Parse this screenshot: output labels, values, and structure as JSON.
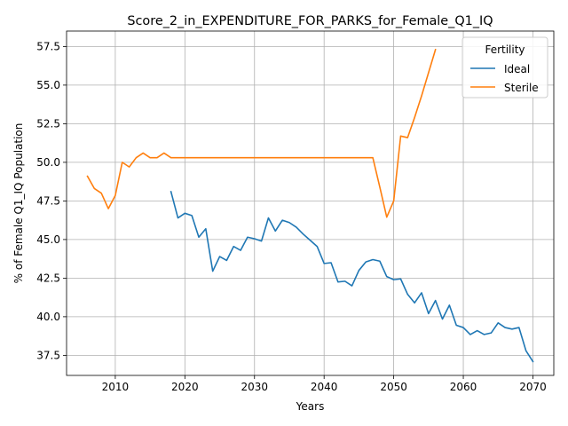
{
  "chart_data": {
    "type": "line",
    "title": "Score_2_in_EXPENDITURE_FOR_PARKS_for_Female_Q1_IQ",
    "xlabel": "Years",
    "ylabel": "% of Female Q1_IQ Population",
    "xlim": [
      2003,
      2073
    ],
    "ylim": [
      36.2,
      58.5
    ],
    "xticks": [
      2010,
      2020,
      2030,
      2040,
      2050,
      2060,
      2070
    ],
    "yticks": [
      37.5,
      40.0,
      42.5,
      45.0,
      47.5,
      50.0,
      52.5,
      55.0,
      57.5
    ],
    "grid": true,
    "legend": {
      "title": "Fertility",
      "placement": "top-right"
    },
    "series": [
      {
        "name": "Ideal",
        "color": "#1f77b4",
        "x": [
          2018,
          2019,
          2020,
          2021,
          2022,
          2023,
          2024,
          2025,
          2026,
          2027,
          2028,
          2029,
          2030,
          2031,
          2032,
          2033,
          2034,
          2035,
          2036,
          2037,
          2038,
          2039,
          2040,
          2041,
          2042,
          2043,
          2044,
          2045,
          2046,
          2047,
          2048,
          2049,
          2050,
          2051,
          2052,
          2053,
          2054,
          2055,
          2056,
          2057,
          2058,
          2059,
          2060,
          2061,
          2062,
          2063,
          2064,
          2065,
          2066,
          2067,
          2068,
          2069,
          2070
        ],
        "values": [
          48.1,
          46.4,
          46.7,
          46.55,
          45.15,
          45.7,
          42.95,
          43.9,
          43.65,
          44.55,
          44.3,
          45.15,
          45.05,
          44.9,
          46.4,
          45.55,
          46.25,
          46.1,
          45.8,
          45.35,
          44.95,
          44.55,
          43.45,
          43.5,
          42.25,
          42.3,
          42.0,
          43.0,
          43.55,
          43.7,
          43.6,
          42.6,
          42.4,
          42.45,
          41.45,
          40.9,
          41.55,
          40.2,
          41.05,
          39.85,
          40.75,
          39.45,
          39.3,
          38.85,
          39.1,
          38.85,
          38.95,
          39.6,
          39.3,
          39.2,
          39.3,
          37.8,
          37.1
        ]
      },
      {
        "name": "Sterile",
        "color": "#ff7f0e",
        "x": [
          2006,
          2007,
          2008,
          2009,
          2010,
          2011,
          2012,
          2013,
          2014,
          2015,
          2016,
          2017,
          2018,
          2019,
          2020,
          2021,
          2022,
          2023,
          2024,
          2025,
          2026,
          2027,
          2028,
          2029,
          2030,
          2031,
          2032,
          2033,
          2034,
          2035,
          2036,
          2037,
          2038,
          2039,
          2040,
          2041,
          2042,
          2043,
          2044,
          2045,
          2046,
          2047,
          2048,
          2049,
          2050,
          2051,
          2052,
          2053,
          2054,
          2055,
          2056
        ],
        "values": [
          49.1,
          48.3,
          48.0,
          47.0,
          47.85,
          50.0,
          49.7,
          50.3,
          50.6,
          50.3,
          50.3,
          50.6,
          50.3,
          50.3,
          50.3,
          50.3,
          50.3,
          50.3,
          50.3,
          50.3,
          50.3,
          50.3,
          50.3,
          50.3,
          50.3,
          50.3,
          50.3,
          50.3,
          50.3,
          50.3,
          50.3,
          50.3,
          50.3,
          50.3,
          50.3,
          50.3,
          50.3,
          50.3,
          50.3,
          50.3,
          50.3,
          50.3,
          48.4,
          46.45,
          47.5,
          51.7,
          51.6,
          52.9,
          54.3,
          55.8,
          57.3
        ]
      }
    ]
  }
}
